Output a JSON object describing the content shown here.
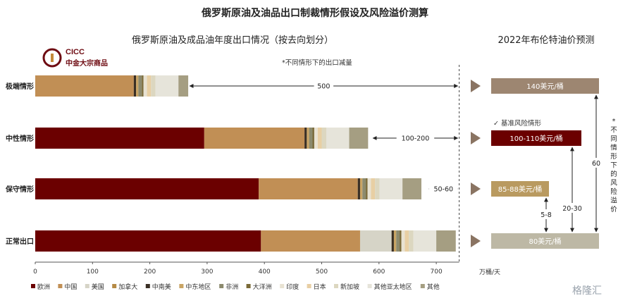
{
  "title": "俄罗斯原油及油品出口制裁情形假设及风险溢价测算",
  "watermark": "格隆汇",
  "logo": {
    "en": "CICC",
    "cn": "中金大宗商品"
  },
  "colors": {
    "欧洲": "#6b0000",
    "中国": "#c18f55",
    "美国": "#d6d4c7",
    "加拿大": "#b58a45",
    "中南美": "#3a2f24",
    "中东地区": "#c9a464",
    "非洲": "#8c8a6d",
    "大洋洲": "#7a6a38",
    "印度": "#e8e2d2",
    "日本": "#e8cfa4",
    "新加坡": "#dcd7c0",
    "其他亚太地区": "#e6e4da",
    "其他": "#a59e82",
    "arrow": "#8a7462",
    "price_extreme": "#9d8671",
    "price_neutral": "#6b0000",
    "price_conservative": "#b99a60",
    "price_normal": "#bdb8a5"
  },
  "chart_data": [
    {
      "type": "bar",
      "orientation": "horizontal",
      "stacked": true,
      "title": "俄罗斯原油及成品油年度出口情况（按去向划分）",
      "note": "*不同情形下的出口减量",
      "categories": [
        "极端情形",
        "中性情形",
        "保守情形",
        "正常出口"
      ],
      "xlabel": "万桶/天",
      "xlim": [
        0,
        740
      ],
      "xticks": [
        0,
        100,
        200,
        300,
        400,
        500,
        600,
        700
      ],
      "legend_position": "bottom",
      "series": [
        {
          "name": "欧洲",
          "values": [
            0,
            295,
            390,
            394
          ]
        },
        {
          "name": "中国",
          "values": [
            172,
            175,
            173,
            173
          ]
        },
        {
          "name": "美国",
          "values": [
            0,
            0,
            0,
            55
          ]
        },
        {
          "name": "加拿大",
          "values": [
            0,
            0,
            0,
            0
          ]
        },
        {
          "name": "中南美",
          "values": [
            4,
            4,
            4,
            4
          ]
        },
        {
          "name": "中东地区",
          "values": [
            4,
            4,
            4,
            4
          ]
        },
        {
          "name": "非洲",
          "values": [
            6,
            6,
            6,
            6
          ]
        },
        {
          "name": "大洋洲",
          "values": [
            3,
            3,
            3,
            3
          ]
        },
        {
          "name": "印度",
          "values": [
            6,
            6,
            6,
            6
          ]
        },
        {
          "name": "日本",
          "values": [
            7,
            7,
            7,
            7
          ]
        },
        {
          "name": "新加坡",
          "values": [
            8,
            8,
            8,
            8
          ]
        },
        {
          "name": "其他亚太地区",
          "values": [
            40,
            40,
            40,
            40
          ]
        },
        {
          "name": "其他",
          "values": [
            17,
            33,
            33,
            34
          ]
        }
      ],
      "annotations": [
        {
          "category": "极端情形",
          "text": "500",
          "from": 267,
          "to": 740
        },
        {
          "category": "中性情形",
          "text": "100-200",
          "from": 587,
          "to": 740
        },
        {
          "category": "保守情形",
          "text": "50-60",
          "from": 685,
          "to": 740
        }
      ]
    },
    {
      "type": "table",
      "title": "2022年布伦特油价预测",
      "scenarios": [
        {
          "category": "极端情形",
          "price": "140美元/桶"
        },
        {
          "category": "中性情形",
          "price": "100-110美元/桶",
          "tag": "✓ 基准风险情形"
        },
        {
          "category": "保守情形",
          "price": "85-88美元/桶"
        },
        {
          "category": "正常出口",
          "price": "80美元/桶"
        }
      ],
      "premiums": [
        {
          "from": "保守情形",
          "to": "正常出口",
          "label": "5-8"
        },
        {
          "from": "中性情形",
          "to": "正常出口",
          "label": "20-30"
        },
        {
          "from": "极端情形",
          "to": "正常出口",
          "label": "60"
        }
      ],
      "side_note": "*不同情形下的风险溢价"
    }
  ]
}
